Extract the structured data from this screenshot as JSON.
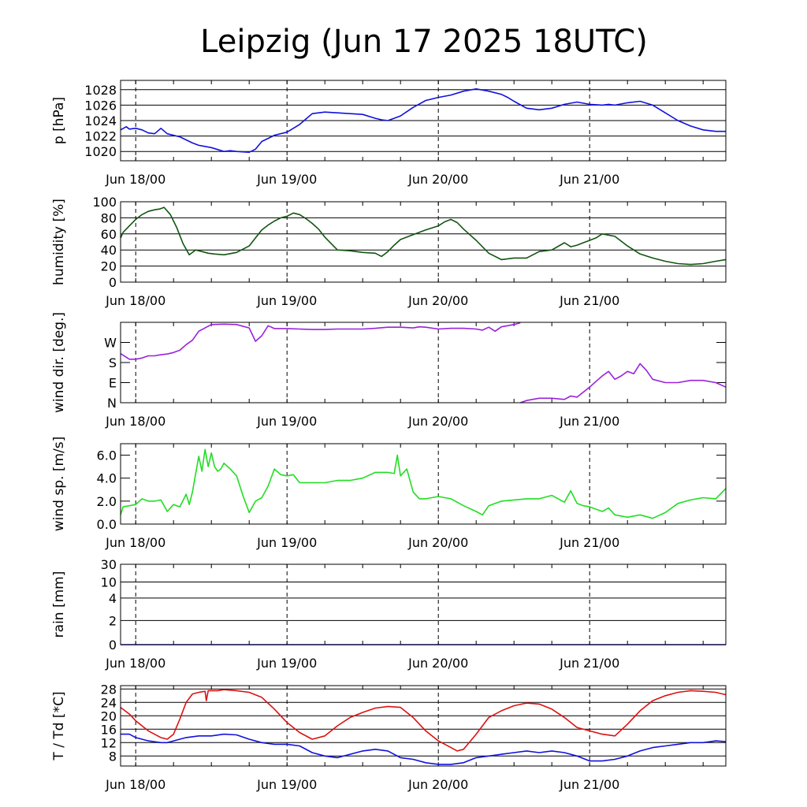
{
  "title": "Leipzig (Jun 17 2025 18UTC)",
  "colors": {
    "pressure": "#1111dd",
    "humidity": "#115511",
    "wind_dir": "#9922dd",
    "wind_speed": "#22dd22",
    "rain": "#1111dd",
    "temperature": "#dd1111",
    "dewpoint": "#1111dd",
    "grid": "#000000"
  },
  "chart_data": [
    {
      "type": "line",
      "name": "pressure",
      "ylabel": "p [hPa]",
      "x_unit": "hours after Jun 17 2025 18UTC",
      "x_range": [
        -2.4,
        93.6
      ],
      "x_tick_labels": [
        "Jun 18/00",
        "Jun 19/00",
        "Jun 20/00",
        "Jun 21/00"
      ],
      "x_major_ticks": [
        0,
        24,
        48,
        72
      ],
      "ylim": [
        1018.8,
        1029.2
      ],
      "y_ticks": [
        1020,
        1022,
        1024,
        1026,
        1028
      ],
      "y_tick_labels": [
        "1020",
        "1022",
        "1024",
        "1026",
        "1028"
      ],
      "grid": true,
      "series": [
        {
          "x": [
            -2.4,
            -1.5,
            -1,
            0,
            1,
            2,
            3,
            4,
            5,
            7,
            9,
            10,
            12,
            14,
            15,
            16,
            18,
            19,
            20,
            21,
            22,
            24,
            25,
            26,
            27,
            28,
            30,
            32,
            34,
            36,
            38,
            39,
            40,
            42,
            44,
            46,
            48,
            50,
            52,
            54,
            56,
            58,
            59,
            60,
            62,
            64,
            66,
            68,
            70,
            72,
            74,
            75,
            76,
            78,
            80,
            82,
            84,
            86,
            88,
            90,
            92,
            93.6
          ],
          "y": [
            1022.8,
            1023.2,
            1022.9,
            1023.0,
            1022.8,
            1022.4,
            1022.3,
            1023.0,
            1022.3,
            1021.9,
            1021.1,
            1020.8,
            1020.5,
            1020.0,
            1020.1,
            1020.0,
            1019.9,
            1020.3,
            1021.3,
            1021.7,
            1022.1,
            1022.5,
            1023.0,
            1023.5,
            1024.2,
            1024.9,
            1025.1,
            1025.0,
            1024.9,
            1024.8,
            1024.3,
            1024.1,
            1024.0,
            1024.6,
            1025.7,
            1026.6,
            1027.0,
            1027.3,
            1027.8,
            1028.1,
            1027.8,
            1027.4,
            1027.0,
            1026.5,
            1025.6,
            1025.4,
            1025.6,
            1026.1,
            1026.4,
            1026.1,
            1026.0,
            1026.1,
            1026.0,
            1026.3,
            1026.5,
            1026.0,
            1025.0,
            1024.0,
            1023.3,
            1022.8,
            1022.6,
            1022.6
          ]
        }
      ]
    },
    {
      "type": "line",
      "name": "humidity",
      "ylabel": "humidity [%]",
      "x_unit": "hours after Jun 17 2025 18UTC",
      "x_range": [
        -2.4,
        93.6
      ],
      "x_tick_labels": [
        "Jun 18/00",
        "Jun 19/00",
        "Jun 20/00",
        "Jun 21/00"
      ],
      "x_major_ticks": [
        0,
        24,
        48,
        72
      ],
      "ylim": [
        0,
        100
      ],
      "y_ticks": [
        0,
        20,
        40,
        60,
        80,
        100
      ],
      "y_tick_labels": [
        "0",
        "20",
        "40",
        "60",
        "80",
        "100"
      ],
      "grid": true,
      "series": [
        {
          "x": [
            -2.4,
            -2,
            -1,
            0,
            1,
            2,
            3,
            3.8,
            4.5,
            5.5,
            6.5,
            7.5,
            8.5,
            9.5,
            10.5,
            11.5,
            12.5,
            14,
            16,
            18,
            19,
            20,
            21,
            22,
            23,
            24,
            25,
            26,
            27,
            28,
            29,
            30,
            32,
            34,
            36,
            38,
            39,
            40,
            41,
            42,
            44,
            46,
            48,
            49,
            50,
            51,
            52,
            53,
            54,
            56,
            58,
            60,
            62,
            64,
            66,
            68,
            69,
            70,
            71,
            72,
            73,
            74,
            76,
            78,
            80,
            82,
            84,
            86,
            88,
            90,
            92,
            93.6
          ],
          "y": [
            55,
            62,
            70,
            78,
            84,
            88,
            90,
            91,
            93,
            84,
            68,
            48,
            34,
            40,
            38,
            36,
            35,
            34,
            37,
            45,
            55,
            65,
            71,
            76,
            80,
            82,
            86,
            84,
            79,
            73,
            66,
            56,
            40,
            39,
            37,
            36,
            32,
            38,
            46,
            53,
            59,
            65,
            70,
            75,
            78,
            74,
            66,
            59,
            52,
            36,
            28,
            30,
            30,
            38,
            40,
            49,
            44,
            46,
            49,
            52,
            55,
            60,
            57,
            45,
            35,
            30,
            26,
            23,
            22,
            23,
            26,
            28
          ]
        }
      ]
    },
    {
      "type": "line",
      "name": "wind direction",
      "ylabel": "wind dir. [deg.]",
      "x_unit": "hours after Jun 17 2025 18UTC",
      "x_range": [
        -2.4,
        93.6
      ],
      "x_tick_labels": [
        "Jun 18/00",
        "Jun 19/00",
        "Jun 20/00",
        "Jun 21/00"
      ],
      "x_major_ticks": [
        0,
        24,
        48,
        72
      ],
      "ylim": [
        0,
        360
      ],
      "y_ticks": [
        0,
        90,
        180,
        270
      ],
      "y_tick_labels": [
        "N",
        "E",
        "S",
        "W"
      ],
      "grid": false,
      "series": [
        {
          "x": [
            -2.4,
            -1,
            0,
            1,
            2,
            3,
            4,
            5,
            6,
            7,
            8,
            9,
            10,
            12,
            14,
            16,
            18,
            19,
            20,
            21,
            22,
            24,
            26,
            28,
            30,
            32,
            34,
            36,
            38,
            40,
            42,
            44,
            45,
            46,
            48,
            50,
            52,
            54,
            55,
            56,
            57,
            58,
            60,
            61
          ],
          "y": [
            220,
            195,
            195,
            200,
            210,
            210,
            215,
            218,
            225,
            235,
            260,
            280,
            320,
            350,
            352,
            350,
            335,
            275,
            300,
            345,
            332,
            332,
            330,
            328,
            328,
            330,
            330,
            330,
            333,
            338,
            338,
            335,
            340,
            338,
            330,
            333,
            333,
            330,
            325,
            338,
            320,
            340,
            350,
            358
          ]
        },
        {
          "x": [
            61,
            62,
            64,
            66,
            68,
            69,
            70,
            72,
            74,
            75,
            76,
            77,
            78,
            79,
            80,
            81,
            82,
            84,
            86,
            88,
            90,
            92,
            93.6
          ],
          "y": [
            0,
            10,
            20,
            20,
            15,
            30,
            25,
            70,
            120,
            140,
            105,
            120,
            140,
            130,
            175,
            145,
            105,
            90,
            90,
            100,
            100,
            90,
            70
          ]
        }
      ]
    },
    {
      "type": "line",
      "name": "wind speed",
      "ylabel": "wind sp. [m/s]",
      "x_unit": "hours after Jun 17 2025 18UTC",
      "x_range": [
        -2.4,
        93.6
      ],
      "x_tick_labels": [
        "Jun 18/00",
        "Jun 19/00",
        "Jun 20/00",
        "Jun 21/00"
      ],
      "x_major_ticks": [
        0,
        24,
        48,
        72
      ],
      "ylim": [
        0,
        7
      ],
      "y_ticks": [
        0,
        2,
        4,
        6
      ],
      "y_tick_labels": [
        "0.0",
        "2.0",
        "4.0",
        "6.0"
      ],
      "grid": false,
      "series": [
        {
          "x": [
            -2.4,
            -2,
            -1,
            0,
            1,
            2,
            3,
            4,
            5,
            6,
            7,
            8,
            8.5,
            9,
            10,
            10.5,
            11,
            11.5,
            12,
            12.5,
            13,
            13.5,
            14,
            15,
            16,
            17,
            18,
            19,
            20,
            21,
            22,
            23,
            24,
            25,
            26,
            28,
            30,
            32,
            34,
            36,
            38,
            40,
            41,
            41.5,
            42,
            43,
            44,
            45,
            46,
            48,
            50,
            52,
            54,
            55,
            56,
            58,
            60,
            62,
            64,
            66,
            68,
            69,
            70,
            71,
            72,
            74,
            75,
            76,
            78,
            80,
            82,
            84,
            86,
            88,
            90,
            92,
            93.6
          ],
          "y": [
            0.8,
            1.5,
            1.6,
            1.7,
            2.2,
            2.0,
            2.0,
            2.1,
            1.1,
            1.7,
            1.5,
            2.6,
            1.7,
            2.8,
            5.9,
            4.6,
            6.5,
            5.0,
            6.2,
            5.0,
            4.6,
            4.8,
            5.3,
            4.8,
            4.2,
            2.5,
            1.0,
            2.0,
            2.3,
            3.3,
            4.8,
            4.3,
            4.2,
            4.3,
            3.6,
            3.6,
            3.6,
            3.8,
            3.8,
            4.0,
            4.5,
            4.5,
            4.4,
            6.0,
            4.2,
            4.8,
            2.8,
            2.2,
            2.2,
            2.4,
            2.2,
            1.6,
            1.1,
            0.8,
            1.6,
            2.0,
            2.1,
            2.2,
            2.2,
            2.5,
            1.9,
            2.9,
            1.8,
            1.6,
            1.5,
            1.1,
            1.4,
            0.8,
            0.6,
            0.8,
            0.5,
            1.0,
            1.8,
            2.1,
            2.3,
            2.2,
            3.1
          ]
        }
      ]
    },
    {
      "type": "line",
      "name": "rain",
      "ylabel": "rain [mm]",
      "x_unit": "hours after Jun 17 2025 18UTC",
      "x_range": [
        -2.4,
        93.6
      ],
      "x_tick_labels": [
        "Jun 18/00",
        "Jun 19/00",
        "Jun 20/00",
        "Jun 21/00"
      ],
      "x_major_ticks": [
        0,
        24,
        48,
        72
      ],
      "ylim": [
        0,
        30
      ],
      "y_scale": "nonlinear",
      "y_ticks": [
        0,
        2,
        4,
        10,
        30
      ],
      "y_tick_labels": [
        "0",
        "2",
        "4",
        "10",
        "30"
      ],
      "grid": true,
      "series": [
        {
          "x": [
            -2.4,
            93.6
          ],
          "y": [
            0,
            0
          ]
        }
      ]
    },
    {
      "type": "line",
      "name": "temperature / dewpoint",
      "ylabel": "T / Td [*C]",
      "x_unit": "hours after Jun 17 2025 18UTC",
      "x_range": [
        -2.4,
        93.6
      ],
      "x_tick_labels": [
        "Jun 18/00",
        "Jun 19/00",
        "Jun 20/00",
        "Jun 21/00"
      ],
      "x_major_ticks": [
        0,
        24,
        48,
        72
      ],
      "ylim": [
        5,
        29
      ],
      "y_ticks": [
        8,
        12,
        16,
        20,
        24,
        28
      ],
      "y_tick_labels": [
        "8",
        "12",
        "16",
        "20",
        "24",
        "28"
      ],
      "grid": true,
      "series": [
        {
          "x": [
            -2.4,
            -1,
            0,
            2,
            4,
            5,
            6,
            7,
            8,
            9,
            10,
            11,
            11.2,
            11.5,
            12,
            13,
            14,
            16,
            18,
            20,
            22,
            24,
            26,
            28,
            30,
            32,
            34,
            36,
            38,
            40,
            42,
            44,
            46,
            48,
            50,
            51,
            52,
            54,
            56,
            58,
            60,
            62,
            64,
            66,
            68,
            70,
            72,
            74,
            76,
            78,
            80,
            82,
            84,
            86,
            88,
            90,
            92,
            93.6
          ],
          "y": [
            22.5,
            20.5,
            18.5,
            15.5,
            13.5,
            13.0,
            14.5,
            19.0,
            24.0,
            26.5,
            27.0,
            27.3,
            24.5,
            27.5,
            27.5,
            27.5,
            27.8,
            27.5,
            27.0,
            25.5,
            22.0,
            18.0,
            15.0,
            13.0,
            14.0,
            17.0,
            19.5,
            21.0,
            22.3,
            22.8,
            22.5,
            19.5,
            15.5,
            12.5,
            10.5,
            9.5,
            10.0,
            14.5,
            19.5,
            21.5,
            23.0,
            23.8,
            23.5,
            22.0,
            19.5,
            16.5,
            15.5,
            14.5,
            14.0,
            17.5,
            21.5,
            24.5,
            26.0,
            27.0,
            27.5,
            27.3,
            27.0,
            26.3
          ]
        },
        {
          "x": [
            -2.4,
            -1,
            0,
            2,
            4,
            5,
            6,
            7,
            8,
            10,
            12,
            14,
            16,
            18,
            20,
            22,
            24,
            26,
            28,
            30,
            32,
            34,
            36,
            38,
            40,
            42,
            44,
            46,
            48,
            50,
            52,
            54,
            56,
            58,
            60,
            62,
            64,
            66,
            68,
            70,
            72,
            74,
            76,
            78,
            80,
            82,
            84,
            86,
            88,
            90,
            92,
            93.6
          ],
          "y": [
            14.5,
            14.5,
            13.5,
            12.5,
            12.0,
            12.0,
            12.5,
            13.0,
            13.5,
            14.0,
            14.0,
            14.5,
            14.3,
            13.0,
            12.0,
            11.5,
            11.5,
            11.0,
            9.0,
            8.0,
            7.5,
            8.5,
            9.5,
            10.0,
            9.5,
            7.5,
            7.0,
            6.0,
            5.5,
            5.5,
            6.0,
            7.5,
            8.0,
            8.5,
            9.0,
            9.5,
            9.0,
            9.5,
            9.0,
            8.0,
            6.5,
            6.5,
            7.0,
            8.0,
            9.5,
            10.5,
            11.0,
            11.5,
            12.0,
            12.0,
            12.5,
            12.3
          ]
        }
      ]
    }
  ]
}
